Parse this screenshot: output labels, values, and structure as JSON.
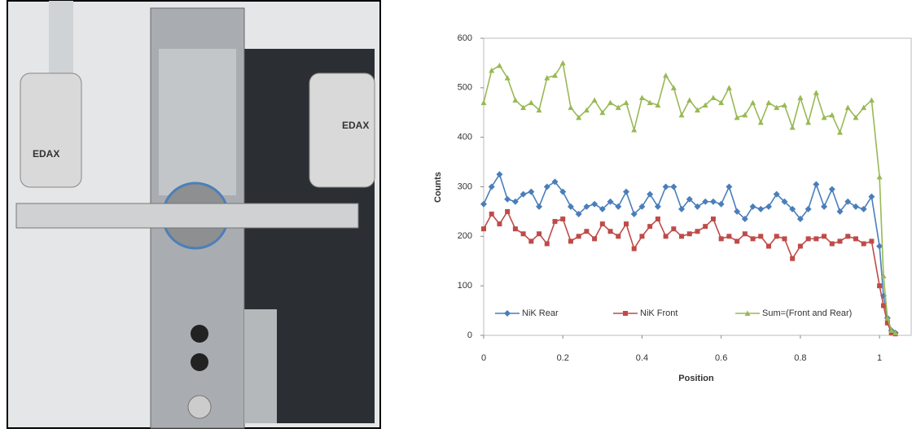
{
  "photo": {
    "labels": [
      "EDAX",
      "EDAX"
    ]
  },
  "chart_data": {
    "type": "line",
    "x_label": "Position",
    "y_label": "Counts",
    "x": [
      0,
      0.02,
      0.04,
      0.06,
      0.08,
      0.1,
      0.12,
      0.14,
      0.16,
      0.18,
      0.2,
      0.22,
      0.24,
      0.26,
      0.28,
      0.3,
      0.32,
      0.34,
      0.36,
      0.38,
      0.4,
      0.42,
      0.44,
      0.46,
      0.48,
      0.5,
      0.52,
      0.54,
      0.56,
      0.58,
      0.6,
      0.62,
      0.64,
      0.66,
      0.68,
      0.7,
      0.72,
      0.74,
      0.76,
      0.78,
      0.8,
      0.82,
      0.84,
      0.86,
      0.88,
      0.9,
      0.92,
      0.94,
      0.96,
      0.98,
      1.0,
      1.01,
      1.02,
      1.03,
      1.04
    ],
    "series": [
      {
        "name": "NiK Rear",
        "color": "#4a7ebb",
        "marker": "diamond",
        "values": [
          265,
          300,
          325,
          275,
          270,
          285,
          290,
          260,
          300,
          310,
          290,
          260,
          245,
          260,
          265,
          255,
          270,
          260,
          290,
          245,
          260,
          285,
          260,
          300,
          300,
          255,
          275,
          260,
          270,
          270,
          265,
          300,
          250,
          235,
          260,
          255,
          260,
          285,
          270,
          255,
          235,
          255,
          305,
          260,
          295,
          250,
          270,
          260,
          255,
          280,
          180,
          80,
          35,
          10,
          5
        ]
      },
      {
        "name": "NiK Front",
        "color": "#be4b48",
        "marker": "square",
        "values": [
          215,
          245,
          225,
          250,
          215,
          205,
          190,
          205,
          185,
          230,
          235,
          190,
          200,
          210,
          195,
          225,
          210,
          200,
          225,
          175,
          200,
          220,
          235,
          200,
          215,
          200,
          205,
          210,
          220,
          235,
          195,
          200,
          190,
          205,
          195,
          200,
          180,
          200,
          195,
          155,
          180,
          195,
          195,
          200,
          185,
          190,
          200,
          195,
          185,
          190,
          100,
          60,
          25,
          5,
          3
        ]
      },
      {
        "name": "Sum=(Front and Rear)",
        "color": "#98b954",
        "marker": "triangle",
        "values": [
          470,
          535,
          545,
          520,
          475,
          460,
          470,
          455,
          520,
          525,
          550,
          460,
          440,
          455,
          475,
          450,
          470,
          460,
          470,
          415,
          480,
          470,
          465,
          525,
          500,
          445,
          475,
          455,
          465,
          480,
          470,
          500,
          440,
          445,
          470,
          430,
          470,
          460,
          465,
          420,
          480,
          430,
          490,
          440,
          445,
          410,
          460,
          440,
          460,
          475,
          320,
          120,
          35,
          10,
          5
        ]
      }
    ],
    "xlim": [
      0,
      1.08
    ],
    "ylim": [
      0,
      600
    ],
    "xticks": [
      0,
      0.2,
      0.4,
      0.6,
      0.8,
      1
    ],
    "yticks": [
      0,
      100,
      200,
      300,
      400,
      500,
      600
    ],
    "legend": "bottom-left"
  }
}
